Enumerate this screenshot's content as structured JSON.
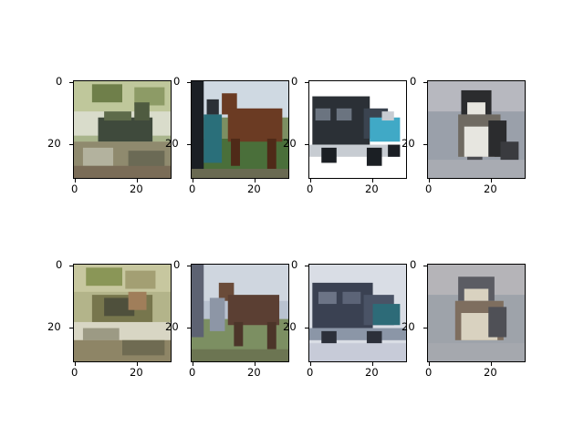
{
  "figure": {
    "background": "#ffffff",
    "rows": 2,
    "cols": 4,
    "axis_ticks": {
      "x": [
        "0",
        "20"
      ],
      "y": [
        "0",
        "20"
      ]
    },
    "panels": [
      {
        "row": 1,
        "subject": "bird-on-grass original",
        "palette": [
          "#a9b58c",
          "#5e6b4a",
          "#d9dccb",
          "#3f4a3c",
          "#8f8a6e"
        ]
      },
      {
        "row": 1,
        "subject": "horse with rider original",
        "palette": [
          "#b7c6d6",
          "#6b3b23",
          "#4a6f3a",
          "#2a6f7a",
          "#cfd9e2"
        ]
      },
      {
        "row": 1,
        "subject": "truck original",
        "palette": [
          "#ffffff",
          "#2b3036",
          "#40a9c6",
          "#c7ccd2",
          "#1b1f24"
        ]
      },
      {
        "row": 1,
        "subject": "bird close-up original",
        "palette": [
          "#9aa0aa",
          "#2b2c2e",
          "#e7e6e0",
          "#6f6a62",
          "#b7b8bf"
        ]
      },
      {
        "row": 2,
        "subject": "bird-on-grass reconstruction",
        "palette": [
          "#b3b48a",
          "#77764d",
          "#d8d6c4",
          "#4f503c",
          "#a07e5a"
        ]
      },
      {
        "row": 2,
        "subject": "horse with rider reconstruction",
        "palette": [
          "#b9c2d0",
          "#6a4b39",
          "#7c8f62",
          "#cfd6df",
          "#5d6272"
        ]
      },
      {
        "row": 2,
        "subject": "truck reconstruction",
        "palette": [
          "#d9dde5",
          "#3a4152",
          "#2d6b78",
          "#8b96a7",
          "#c7cbd8"
        ]
      },
      {
        "row": 2,
        "subject": "bird close-up reconstruction",
        "palette": [
          "#9ea3aa",
          "#5b5c63",
          "#d9d2c0",
          "#7e6e5f",
          "#b5b4b8"
        ]
      }
    ]
  }
}
